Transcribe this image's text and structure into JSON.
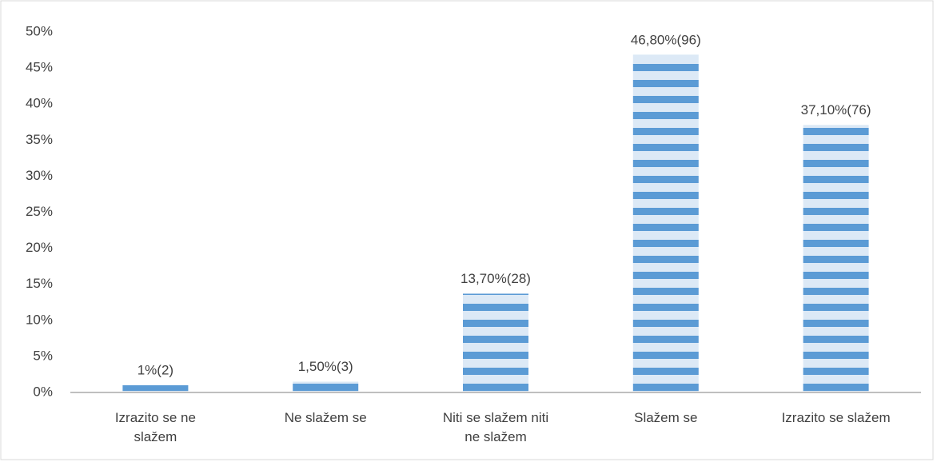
{
  "chart_data": {
    "type": "bar",
    "categories": [
      "Izrazito se ne slažem",
      "Ne slažem se",
      "Niti se slažem niti ne slažem",
      "Slažem se",
      "Izrazito se slažem"
    ],
    "values": [
      1,
      1.5,
      13.7,
      46.8,
      37.1
    ],
    "value_labels": [
      "1%(2)",
      "1,50%(3)",
      "13,70%(28)",
      "46,80%(96)",
      "37,10%(76)"
    ],
    "color": "#5b9bd5",
    "stripe_color": "#dce9f6",
    "ylim": [
      0,
      50
    ],
    "yticks": [
      {
        "value": 0,
        "label": "0%"
      },
      {
        "value": 5,
        "label": "5%"
      },
      {
        "value": 10,
        "label": "10%"
      },
      {
        "value": 15,
        "label": "15%"
      },
      {
        "value": 20,
        "label": "20%"
      },
      {
        "value": 25,
        "label": "25%"
      },
      {
        "value": 30,
        "label": "30%"
      },
      {
        "value": 35,
        "label": "35%"
      },
      {
        "value": 40,
        "label": "40%"
      },
      {
        "value": 45,
        "label": "45%"
      },
      {
        "value": 50,
        "label": "50%"
      }
    ],
    "grid": false
  }
}
